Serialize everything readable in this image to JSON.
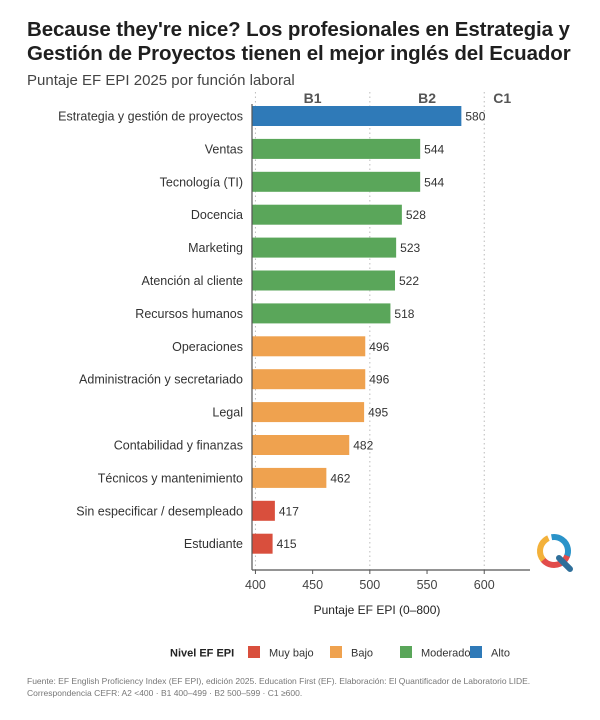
{
  "title_line1": "Because they're nice? Los profesionales en Estrategia y",
  "title_line2": "Gestión de Proyectos tienen el mejor inglés del Ecuador",
  "subtitle": "Puntaje EF EPI 2025 por función laboral",
  "footer_line1": "Fuente: EF English Proficiency Index (EF EPI), edición 2025. Education First (EF). Elaboración: El Quantificador de Laboratorio LIDE.",
  "footer_line2": "Correspondencia CEFR: A2 <400 · B1 400–499 · B2 500–599 · C1 ≥600.",
  "colors": {
    "Muy bajo": "#d94f3d",
    "Bajo": "#efa24f",
    "Moderado": "#5aa65a",
    "Alto": "#2f7ab8"
  },
  "chart_data": {
    "type": "bar",
    "orientation": "horizontal",
    "categories": [
      "Estrategia y gestión de proyectos",
      "Ventas",
      "Tecnología (TI)",
      "Docencia",
      "Marketing",
      "Atención al cliente",
      "Recursos humanos",
      "Operaciones",
      "Administración y secretariado",
      "Legal",
      "Contabilidad y finanzas",
      "Técnicos y mantenimiento",
      "Sin especificar / desempleado",
      "Estudiante"
    ],
    "values": [
      580,
      544,
      544,
      528,
      523,
      522,
      518,
      496,
      496,
      495,
      482,
      462,
      417,
      415
    ],
    "levels": [
      "Alto",
      "Moderado",
      "Moderado",
      "Moderado",
      "Moderado",
      "Moderado",
      "Moderado",
      "Bajo",
      "Bajo",
      "Bajo",
      "Bajo",
      "Bajo",
      "Muy bajo",
      "Muy bajo"
    ],
    "xlabel": "Puntaje EF EPI (0–800)",
    "xlim": [
      397,
      640
    ],
    "xticks": [
      400,
      450,
      500,
      550,
      600
    ],
    "cefr_bands": [
      {
        "label": "B1",
        "from": 400,
        "to": 500
      },
      {
        "label": "B2",
        "from": 500,
        "to": 600
      },
      {
        "label": "C1",
        "from": 600,
        "to": 640
      }
    ],
    "legend": {
      "title": "Nivel EF EPI",
      "position": "bottom",
      "entries": [
        "Muy bajo",
        "Bajo",
        "Moderado",
        "Alto"
      ]
    }
  }
}
